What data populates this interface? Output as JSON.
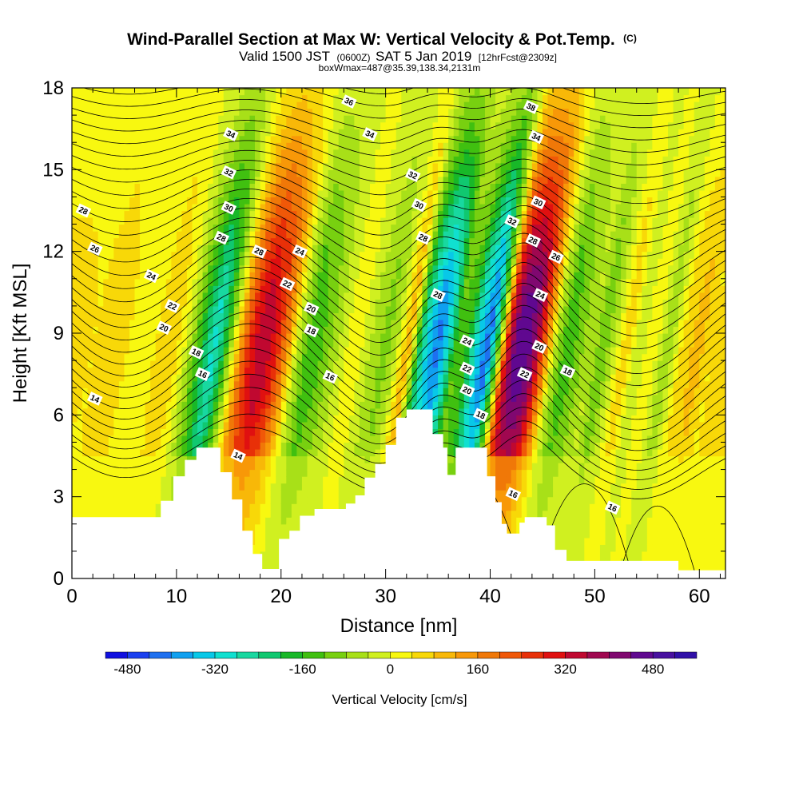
{
  "chart_data": {
    "type": "heatmap",
    "title": "Wind-Parallel Section at Max W: Vertical Velocity & Pot.Temp.",
    "title_unit": "(C)",
    "subtitle": {
      "valid": "Valid 1500 JST",
      "utc": "(0600Z)",
      "date": "SAT 5 Jan 2019",
      "forecast": "[12hrFcst@2309z]"
    },
    "subtitle2": "boxWmax=487@35.39,138.34,2131m",
    "xlabel": "Distance [nm]",
    "ylabel": "Height [Kft MSL]",
    "xlim": [
      0,
      62.5
    ],
    "ylim": [
      0,
      18
    ],
    "x_ticks": [
      "0",
      "10",
      "20",
      "30",
      "40",
      "50",
      "60"
    ],
    "x_tick_values": [
      0,
      10,
      20,
      30,
      40,
      50,
      60
    ],
    "y_ticks": [
      "0",
      "3",
      "6",
      "9",
      "12",
      "15",
      "18"
    ],
    "y_tick_values": [
      0,
      3,
      6,
      9,
      12,
      15,
      18
    ],
    "colorbar": {
      "label": "Vertical Velocity [cm/s]",
      "min": -520,
      "max": 560,
      "step": 40,
      "tick_labels": [
        "-480",
        "-320",
        "-160",
        "0",
        "160",
        "320",
        "480"
      ],
      "tick_values": [
        -480,
        -320,
        -160,
        0,
        160,
        320,
        480
      ],
      "colors": [
        "#1010e0",
        "#1a40f0",
        "#1e70f0",
        "#10a0f0",
        "#08c8e8",
        "#10e0d0",
        "#18d8a0",
        "#10c870",
        "#18b828",
        "#40c010",
        "#78d010",
        "#a8e018",
        "#d0f020",
        "#f8f810",
        "#f8d808",
        "#f8b808",
        "#f89808",
        "#f07808",
        "#f05808",
        "#e83008",
        "#e01010",
        "#c00830",
        "#a00850",
        "#800870",
        "#600890",
        "#4810a0",
        "#3010a8"
      ]
    },
    "terrain": [
      [
        0,
        2.25
      ],
      [
        8.5,
        2.25
      ],
      [
        8.5,
        2.85
      ],
      [
        9.7,
        2.85
      ],
      [
        9.7,
        3.75
      ],
      [
        10.8,
        3.75
      ],
      [
        10.8,
        4.35
      ],
      [
        11.9,
        4.35
      ],
      [
        11.9,
        4.8
      ],
      [
        14.2,
        4.8
      ],
      [
        14.2,
        3.9
      ],
      [
        15.3,
        3.9
      ],
      [
        15.3,
        2.9
      ],
      [
        16.3,
        2.9
      ],
      [
        16.3,
        1.75
      ],
      [
        17.3,
        1.75
      ],
      [
        17.3,
        0.9
      ],
      [
        18.2,
        0.9
      ],
      [
        18.2,
        0.35
      ],
      [
        19.8,
        0.35
      ],
      [
        19.8,
        1.45
      ],
      [
        20.8,
        1.45
      ],
      [
        20.8,
        1.75
      ],
      [
        21.8,
        1.75
      ],
      [
        21.8,
        2.3
      ],
      [
        23.2,
        2.3
      ],
      [
        23.2,
        2.55
      ],
      [
        26.2,
        2.55
      ],
      [
        26.2,
        2.75
      ],
      [
        27.1,
        2.75
      ],
      [
        27.1,
        3.05
      ],
      [
        28.0,
        3.05
      ],
      [
        28.0,
        3.7
      ],
      [
        29.0,
        3.7
      ],
      [
        29.0,
        4.2
      ],
      [
        30.0,
        4.2
      ],
      [
        30.0,
        4.9
      ],
      [
        31.0,
        4.9
      ],
      [
        31.0,
        5.9
      ],
      [
        32.0,
        5.9
      ],
      [
        32.0,
        6.2
      ],
      [
        34.5,
        6.2
      ],
      [
        34.5,
        5.3
      ],
      [
        35.5,
        5.3
      ],
      [
        35.5,
        4.8
      ],
      [
        35.9,
        4.8
      ],
      [
        35.9,
        3.8
      ],
      [
        36.7,
        3.8
      ],
      [
        36.7,
        4.8
      ],
      [
        39.7,
        4.8
      ],
      [
        39.7,
        3.75
      ],
      [
        40.5,
        3.75
      ],
      [
        40.5,
        2.8
      ],
      [
        41.1,
        2.8
      ],
      [
        41.1,
        2.0
      ],
      [
        41.6,
        2.0
      ],
      [
        41.6,
        1.65
      ],
      [
        42.8,
        1.65
      ],
      [
        42.8,
        2.05
      ],
      [
        43.3,
        2.05
      ],
      [
        43.3,
        2.25
      ],
      [
        45.4,
        2.25
      ],
      [
        45.4,
        1.95
      ],
      [
        46.2,
        1.95
      ],
      [
        46.2,
        1.05
      ],
      [
        47.3,
        1.05
      ],
      [
        47.3,
        0.65
      ],
      [
        58.0,
        0.65
      ],
      [
        58.0,
        0.3
      ],
      [
        62.5,
        0.3
      ]
    ],
    "w_columns": [
      {
        "x": 0,
        "w": 60
      },
      {
        "x": 2,
        "w": 40
      },
      {
        "x": 4,
        "w": 80
      },
      {
        "x": 6,
        "w": 20
      },
      {
        "x": 8,
        "w": 40
      },
      {
        "x": 9.2,
        "w": 80
      },
      {
        "x": 10.4,
        "w": 30
      },
      {
        "x": 11.5,
        "w": -80
      },
      {
        "x": 12.6,
        "w": -200
      },
      {
        "x": 13.6,
        "w": -300
      },
      {
        "x": 14.5,
        "w": -200
      },
      {
        "x": 15.3,
        "w": -40
      },
      {
        "x": 16.2,
        "w": 160
      },
      {
        "x": 17.2,
        "w": 300
      },
      {
        "x": 18.3,
        "w": 360
      },
      {
        "x": 19.4,
        "w": 300
      },
      {
        "x": 20.5,
        "w": 160
      },
      {
        "x": 21.6,
        "w": -40
      },
      {
        "x": 22.8,
        "w": -160
      },
      {
        "x": 24.0,
        "w": -120
      },
      {
        "x": 25.5,
        "w": -40
      },
      {
        "x": 27.0,
        "w": 40
      },
      {
        "x": 28.5,
        "w": -40
      },
      {
        "x": 30.0,
        "w": -100
      },
      {
        "x": 31.0,
        "w": -40
      },
      {
        "x": 32.2,
        "w": 120
      },
      {
        "x": 33.2,
        "w": -200
      },
      {
        "x": 34.1,
        "w": -340
      },
      {
        "x": 35.0,
        "w": -420
      },
      {
        "x": 35.9,
        "w": -300
      },
      {
        "x": 36.8,
        "w": -120
      },
      {
        "x": 37.8,
        "w": -160
      },
      {
        "x": 38.8,
        "w": -320
      },
      {
        "x": 39.8,
        "w": -440
      },
      {
        "x": 40.8,
        "w": -120
      },
      {
        "x": 41.6,
        "w": 300
      },
      {
        "x": 42.4,
        "w": 450
      },
      {
        "x": 43.3,
        "w": 480
      },
      {
        "x": 44.2,
        "w": 420
      },
      {
        "x": 45.2,
        "w": 200
      },
      {
        "x": 46.2,
        "w": -40
      },
      {
        "x": 47.3,
        "w": -160
      },
      {
        "x": 48.5,
        "w": -100
      },
      {
        "x": 49.7,
        "w": -40
      },
      {
        "x": 50.8,
        "w": -120
      },
      {
        "x": 51.8,
        "w": -40
      },
      {
        "x": 53.0,
        "w": 80
      },
      {
        "x": 54.2,
        "w": -40
      },
      {
        "x": 55.5,
        "w": 40
      },
      {
        "x": 57.0,
        "w": -80
      },
      {
        "x": 58.5,
        "w": 60
      },
      {
        "x": 60.0,
        "w": 100
      },
      {
        "x": 61.2,
        "w": 40
      },
      {
        "x": 62.5,
        "w": 80
      }
    ],
    "w_height_peak": 8.5,
    "contour_levels": [
      14,
      16,
      18,
      20,
      22,
      24,
      26,
      28,
      30,
      32,
      34,
      36,
      38
    ],
    "contour_labels": [
      {
        "text": "34",
        "x": 15.2,
        "y": 16.3
      },
      {
        "text": "32",
        "x": 15.0,
        "y": 14.9
      },
      {
        "text": "30",
        "x": 15.0,
        "y": 13.6
      },
      {
        "text": "28",
        "x": 14.3,
        "y": 12.5
      },
      {
        "text": "28",
        "x": 1.1,
        "y": 13.5
      },
      {
        "text": "26",
        "x": 2.2,
        "y": 12.1
      },
      {
        "text": "24",
        "x": 7.6,
        "y": 11.1
      },
      {
        "text": "22",
        "x": 9.6,
        "y": 10.0
      },
      {
        "text": "20",
        "x": 8.8,
        "y": 9.2
      },
      {
        "text": "18",
        "x": 11.9,
        "y": 8.3
      },
      {
        "text": "16",
        "x": 12.5,
        "y": 7.5
      },
      {
        "text": "14",
        "x": 2.2,
        "y": 6.6
      },
      {
        "text": "14",
        "x": 15.9,
        "y": 4.5
      },
      {
        "text": "28",
        "x": 17.9,
        "y": 12.0
      },
      {
        "text": "24",
        "x": 21.8,
        "y": 12.0
      },
      {
        "text": "22",
        "x": 20.6,
        "y": 10.8
      },
      {
        "text": "20",
        "x": 22.9,
        "y": 9.9
      },
      {
        "text": "18",
        "x": 22.9,
        "y": 9.1
      },
      {
        "text": "16",
        "x": 24.7,
        "y": 7.4
      },
      {
        "text": "36",
        "x": 26.5,
        "y": 17.5
      },
      {
        "text": "34",
        "x": 28.5,
        "y": 16.3
      },
      {
        "text": "32",
        "x": 32.6,
        "y": 14.8
      },
      {
        "text": "30",
        "x": 33.2,
        "y": 13.7
      },
      {
        "text": "28",
        "x": 33.6,
        "y": 12.5
      },
      {
        "text": "28",
        "x": 35.0,
        "y": 10.4
      },
      {
        "text": "24",
        "x": 37.8,
        "y": 8.7
      },
      {
        "text": "22",
        "x": 37.8,
        "y": 7.7
      },
      {
        "text": "20",
        "x": 37.8,
        "y": 6.9
      },
      {
        "text": "18",
        "x": 39.1,
        "y": 6.0
      },
      {
        "text": "38",
        "x": 43.9,
        "y": 17.3
      },
      {
        "text": "34",
        "x": 44.4,
        "y": 16.2
      },
      {
        "text": "32",
        "x": 42.1,
        "y": 13.1
      },
      {
        "text": "30",
        "x": 44.6,
        "y": 13.8
      },
      {
        "text": "28",
        "x": 44.1,
        "y": 12.4
      },
      {
        "text": "26",
        "x": 46.3,
        "y": 11.8
      },
      {
        "text": "24",
        "x": 44.8,
        "y": 10.4
      },
      {
        "text": "20",
        "x": 44.7,
        "y": 8.5
      },
      {
        "text": "22",
        "x": 43.3,
        "y": 7.5
      },
      {
        "text": "18",
        "x": 47.4,
        "y": 7.6
      },
      {
        "text": "16",
        "x": 42.2,
        "y": 3.1
      },
      {
        "text": "16",
        "x": 51.7,
        "y": 2.6
      }
    ]
  }
}
